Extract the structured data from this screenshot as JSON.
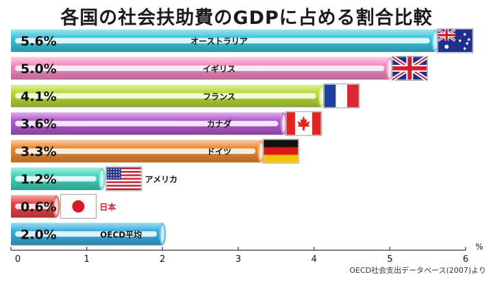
{
  "title": "各国の社会扶助費のGDPに占める割合比較",
  "source": "OECD社会支出データベース(2007)より",
  "chart_data": {
    "type": "bar",
    "orientation": "horizontal",
    "title": "各国の社会扶助費のGDPに占める割合比較",
    "unit": "%",
    "xlim": [
      0,
      6
    ],
    "ticks": [
      0,
      1,
      2,
      3,
      4,
      5,
      6
    ],
    "grid": false,
    "categories": [
      "オーストラリア",
      "イギリス",
      "フランス",
      "カナダ",
      "ドイツ",
      "アメリカ",
      "日本",
      "OECD平均"
    ],
    "values": [
      5.6,
      5.0,
      4.1,
      3.6,
      3.3,
      1.2,
      0.6,
      2.0
    ],
    "value_labels": [
      "5.6%",
      "5.0%",
      "4.1%",
      "3.6%",
      "3.3%",
      "1.2%",
      "0.6%",
      "2.0%"
    ],
    "colors": [
      "#3cc6dc",
      "#f58cc4",
      "#b8dc36",
      "#b45ad0",
      "#ee8a33",
      "#3fd6be",
      "#e84545",
      "#3aaee0"
    ],
    "flags": [
      "australia",
      "uk",
      "france",
      "canada",
      "germany",
      "usa",
      "japan",
      ""
    ]
  }
}
